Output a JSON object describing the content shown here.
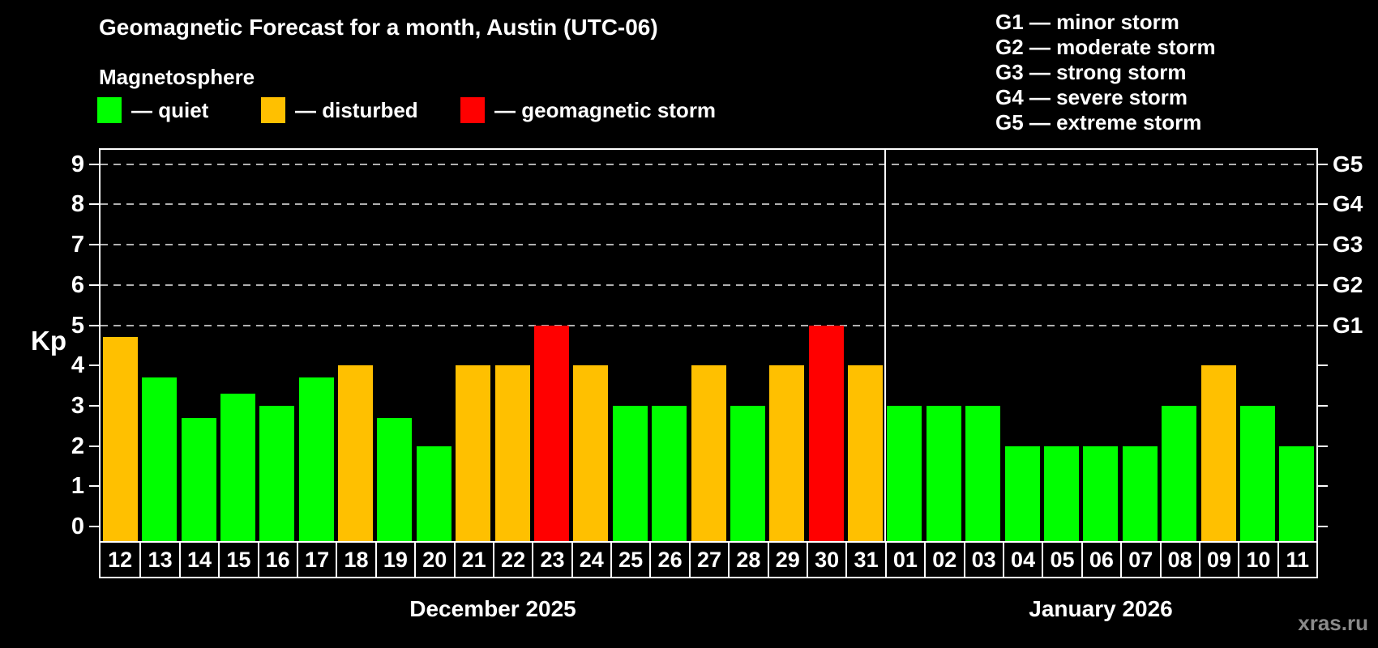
{
  "title": "Geomagnetic Forecast for a month, Austin (UTC-06)",
  "subtitle": "Magnetosphere",
  "legend": {
    "items": [
      {
        "key": "quiet",
        "label": "— quiet"
      },
      {
        "key": "disturbed",
        "label": "— disturbed"
      },
      {
        "key": "storm",
        "label": "— geomagnetic storm"
      }
    ]
  },
  "g_legend": [
    "G1 — minor storm",
    "G2 — moderate storm",
    "G3 — strong storm",
    "G4 — severe storm",
    "G5 — extreme storm"
  ],
  "colors": {
    "quiet": "#00ff00",
    "disturbed": "#ffc000",
    "storm": "#ff0000",
    "background": "#000000",
    "text": "#ffffff",
    "grid": "#b0b0b0",
    "watermark": "#8a8a8a"
  },
  "axis": {
    "kp_label": "Kp",
    "kp_ticks": [
      0,
      1,
      2,
      3,
      4,
      5,
      6,
      7,
      8,
      9
    ],
    "g_labels": [
      {
        "kp": 5,
        "label": "G1"
      },
      {
        "kp": 6,
        "label": "G2"
      },
      {
        "kp": 7,
        "label": "G3"
      },
      {
        "kp": 8,
        "label": "G4"
      },
      {
        "kp": 9,
        "label": "G5"
      }
    ]
  },
  "watermark": "xras.ru",
  "chart_data": {
    "type": "bar",
    "title": "Geomagnetic Forecast for a month, Austin (UTC-06)",
    "ylabel": "Kp",
    "ylim": [
      0,
      9.4
    ],
    "yticks": [
      0,
      1,
      2,
      3,
      4,
      5,
      6,
      7,
      8,
      9
    ],
    "gridlines_at_kp": [
      5,
      6,
      7,
      8,
      9
    ],
    "right_axis": {
      "G1": 5,
      "G2": 6,
      "G3": 7,
      "G4": 8,
      "G5": 9
    },
    "legend_position": "top-left",
    "months": [
      {
        "label": "December 2025",
        "days": [
          "12",
          "13",
          "14",
          "15",
          "16",
          "17",
          "18",
          "19",
          "20",
          "21",
          "22",
          "23",
          "24",
          "25",
          "26",
          "27",
          "28",
          "29",
          "30",
          "31"
        ],
        "values": [
          4.7,
          3.7,
          2.7,
          3.3,
          3.0,
          3.7,
          4.0,
          2.7,
          2.0,
          4.0,
          4.0,
          5.0,
          4.0,
          3.0,
          3.0,
          4.0,
          3.0,
          4.0,
          5.0,
          4.0
        ],
        "status": [
          "disturbed",
          "quiet",
          "quiet",
          "quiet",
          "quiet",
          "quiet",
          "disturbed",
          "quiet",
          "quiet",
          "disturbed",
          "disturbed",
          "storm",
          "disturbed",
          "quiet",
          "quiet",
          "disturbed",
          "quiet",
          "disturbed",
          "storm",
          "disturbed"
        ]
      },
      {
        "label": "January 2026",
        "days": [
          "01",
          "02",
          "03",
          "04",
          "05",
          "06",
          "07",
          "08",
          "09",
          "10",
          "11"
        ],
        "values": [
          3.0,
          3.0,
          3.0,
          2.0,
          2.0,
          2.0,
          2.0,
          3.0,
          4.0,
          3.0,
          2.0
        ],
        "status": [
          "quiet",
          "quiet",
          "quiet",
          "quiet",
          "quiet",
          "quiet",
          "quiet",
          "quiet",
          "disturbed",
          "quiet",
          "quiet"
        ]
      }
    ]
  }
}
